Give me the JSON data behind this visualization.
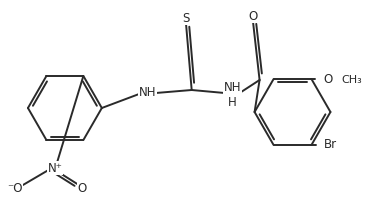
{
  "bg_color": "#ffffff",
  "line_color": "#2a2a2a",
  "line_width": 1.4,
  "font_size": 8.5,
  "figsize": [
    3.68,
    2.16
  ],
  "dpi": 100,
  "xlim": [
    0,
    368
  ],
  "ylim": [
    0,
    216
  ]
}
